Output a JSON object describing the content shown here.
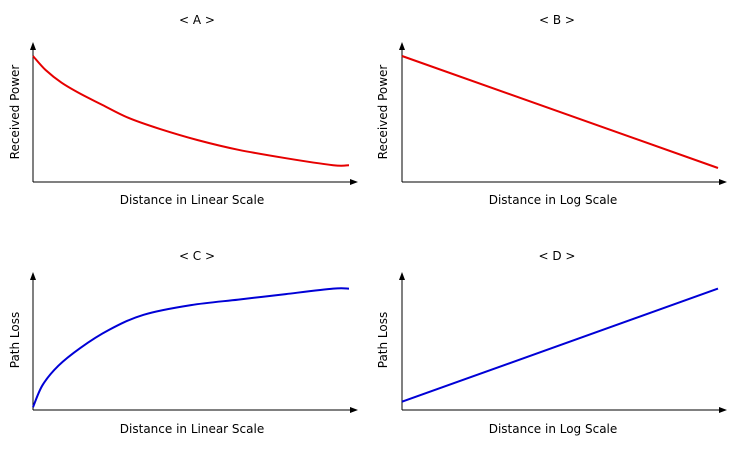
{
  "colors": {
    "red": "#e60000",
    "blue": "#0000d6",
    "axis": "#000000"
  },
  "chart_data": [
    {
      "type": "line",
      "title": "< A >",
      "xlabel": "Distance in Linear Scale",
      "ylabel": "Received Power",
      "color": "red",
      "xlim": [
        0,
        100
      ],
      "ylim": [
        0,
        100
      ],
      "x": [
        0,
        4,
        9,
        15,
        22,
        30,
        40,
        52,
        65,
        80,
        95,
        100
      ],
      "y": [
        90,
        80,
        71,
        63,
        55,
        46,
        38,
        30,
        23,
        17,
        12,
        12
      ]
    },
    {
      "type": "line",
      "title": "< B >",
      "xlabel": "Distance in Log Scale",
      "ylabel": "Received Power",
      "color": "red",
      "xlim": [
        0,
        100
      ],
      "ylim": [
        0,
        100
      ],
      "x": [
        0,
        100
      ],
      "y": [
        90,
        10
      ]
    },
    {
      "type": "line",
      "title": "< C >",
      "xlabel": "Distance in Linear Scale",
      "ylabel": "Path Loss",
      "color": "blue",
      "xlim": [
        0,
        100
      ],
      "ylim": [
        0,
        100
      ],
      "x": [
        0,
        3,
        8,
        15,
        24,
        35,
        50,
        65,
        80,
        95,
        100
      ],
      "y": [
        2,
        18,
        32,
        45,
        58,
        69,
        76,
        80,
        84,
        88,
        88
      ]
    },
    {
      "type": "line",
      "title": "< D >",
      "xlabel": "Distance in Log Scale",
      "ylabel": "Path Loss",
      "color": "blue",
      "xlim": [
        0,
        100
      ],
      "ylim": [
        0,
        100
      ],
      "x": [
        0,
        100
      ],
      "y": [
        6,
        88
      ]
    }
  ]
}
